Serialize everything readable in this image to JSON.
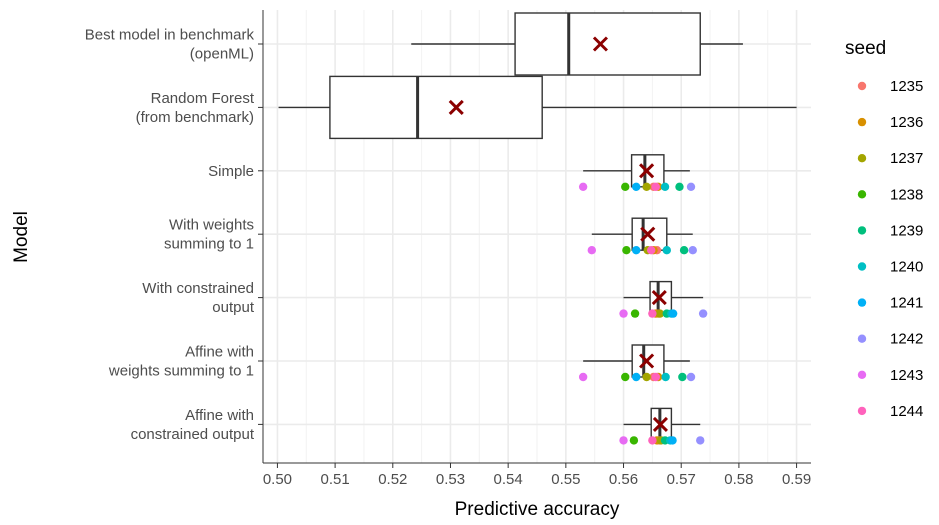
{
  "chart_data": {
    "type": "boxplot",
    "title": "",
    "xlabel": "Predictive accuracy",
    "ylabel": "Model",
    "xlim": [
      0.4975,
      0.5925
    ],
    "x_ticks": [
      0.5,
      0.51,
      0.52,
      0.53,
      0.54,
      0.55,
      0.56,
      0.57,
      0.58,
      0.59
    ],
    "x_tick_labels": [
      "0.50",
      "0.51",
      "0.52",
      "0.53",
      "0.54",
      "0.55",
      "0.56",
      "0.57",
      "0.58",
      "0.59"
    ],
    "grid": true,
    "legend_position": "right",
    "legend_title": "seed",
    "mean_marker_color": "#8b0000",
    "box_color": "#333333",
    "models": [
      {
        "label_lines": [
          "Best model in benchmark",
          "(openML)"
        ],
        "whisker_low": 0.5232,
        "q1": 0.5412,
        "median": 0.5505,
        "q3": 0.5733,
        "whisker_high": 0.5807,
        "mean": 0.556,
        "points": []
      },
      {
        "label_lines": [
          "Random Forest",
          "(from benchmark)"
        ],
        "whisker_low": 0.5002,
        "q1": 0.5091,
        "median": 0.5243,
        "q3": 0.5459,
        "whisker_high": 0.59,
        "mean": 0.531,
        "points": []
      },
      {
        "label_lines": [
          "Simple"
        ],
        "whisker_low": 0.553,
        "q1": 0.5614,
        "median": 0.5637,
        "q3": 0.567,
        "whisker_high": 0.5715,
        "mean": 0.564,
        "points": [
          0.5652,
          0.566,
          0.564,
          0.5603,
          0.5697,
          0.5672,
          0.5622,
          0.5717,
          0.553,
          0.5656
        ]
      },
      {
        "label_lines": [
          "With weights",
          "summing to 1"
        ],
        "whisker_low": 0.5545,
        "q1": 0.5615,
        "median": 0.5634,
        "q3": 0.5675,
        "whisker_high": 0.572,
        "mean": 0.5642,
        "points": [
          0.5658,
          0.5652,
          0.5642,
          0.5605,
          0.5705,
          0.5675,
          0.5622,
          0.572,
          0.5545,
          0.5648
        ]
      },
      {
        "label_lines": [
          "With constrained",
          "output"
        ],
        "whisker_low": 0.56,
        "q1": 0.5646,
        "median": 0.566,
        "q3": 0.5683,
        "whisker_high": 0.5738,
        "mean": 0.5662,
        "points": [
          0.566,
          0.5656,
          0.5663,
          0.562,
          0.5675,
          0.5683,
          0.5686,
          0.5738,
          0.56,
          0.565
        ]
      },
      {
        "label_lines": [
          "Affine with",
          "weights summing to 1"
        ],
        "whisker_low": 0.553,
        "q1": 0.5615,
        "median": 0.5635,
        "q3": 0.567,
        "whisker_high": 0.5715,
        "mean": 0.564,
        "points": [
          0.5652,
          0.566,
          0.564,
          0.5603,
          0.5702,
          0.5673,
          0.5622,
          0.5717,
          0.553,
          0.5656
        ]
      },
      {
        "label_lines": [
          "Affine with",
          "constrained output"
        ],
        "whisker_low": 0.56,
        "q1": 0.5648,
        "median": 0.5663,
        "q3": 0.5683,
        "whisker_high": 0.5733,
        "mean": 0.5664,
        "points": [
          0.5662,
          0.5658,
          0.5665,
          0.5618,
          0.5672,
          0.5681,
          0.5685,
          0.5733,
          0.56,
          0.565
        ]
      }
    ],
    "seeds": [
      {
        "name": "1235",
        "color": "#F8766D"
      },
      {
        "name": "1236",
        "color": "#D89000"
      },
      {
        "name": "1237",
        "color": "#A3A500"
      },
      {
        "name": "1238",
        "color": "#39B600"
      },
      {
        "name": "1239",
        "color": "#00BF7D"
      },
      {
        "name": "1240",
        "color": "#00BFC4"
      },
      {
        "name": "1241",
        "color": "#00B0F6"
      },
      {
        "name": "1242",
        "color": "#9590FF"
      },
      {
        "name": "1243",
        "color": "#E76BF3"
      },
      {
        "name": "1244",
        "color": "#FF62BC"
      }
    ]
  }
}
